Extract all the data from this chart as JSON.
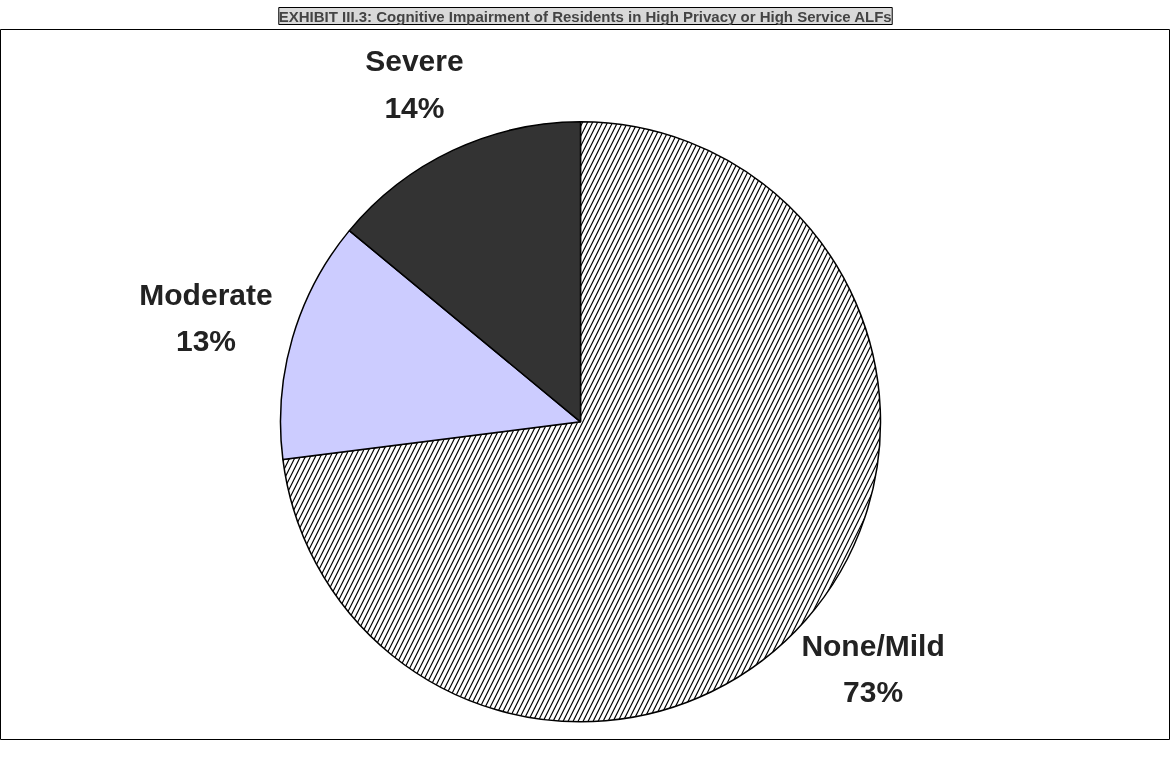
{
  "chart_data": {
    "type": "pie",
    "title": "EXHIBIT III.3: Cognitive Impairment of Residents in High Privacy or High Service ALFs",
    "categories": [
      "None/Mild",
      "Moderate",
      "Severe"
    ],
    "values": [
      73,
      13,
      14
    ],
    "colors": [
      "#ffffff",
      "#ccccff",
      "#333333"
    ],
    "value_labels": [
      "73%",
      "13%",
      "14%"
    ]
  }
}
